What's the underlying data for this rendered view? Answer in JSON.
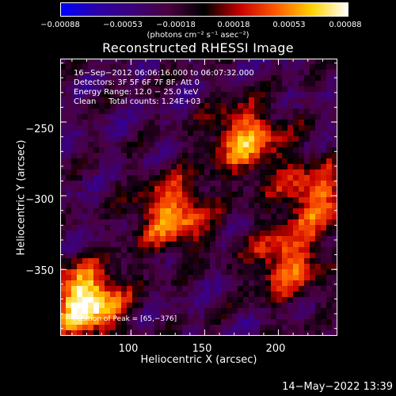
{
  "colorbar": {
    "ticks": [
      "−0.00088",
      "−0.00053",
      "−0.00018",
      "0.00018",
      "0.00053",
      "0.00088"
    ],
    "units": "(photons cm⁻² s⁻¹ asec⁻²)",
    "range": [
      -0.00088,
      0.00088
    ],
    "colors": [
      "#0000ff",
      "#2a00a8",
      "#3c007a",
      "#4a0040",
      "#000000",
      "#c80000",
      "#ff5a00",
      "#ffd200",
      "#ffffff"
    ]
  },
  "image_title": "Reconstructed RHESSI Image",
  "info": {
    "line1": "16−Sep−2012 06:06:16.000 to 06:07:32.000",
    "line2": "Detectors: 3F 5F 6F 7F 8F, Att 0",
    "line3": "Energy Range: 12.0 − 25.0 keV",
    "line4": "Clean     Total counts: 1.24E+03",
    "peak": "Position of Peak = [65,−376]"
  },
  "axes": {
    "xlabel": "Heliocentric X (arcsec)",
    "ylabel": "Heliocentric Y (arcsec)",
    "xticks": [
      "100",
      "150",
      "200"
    ],
    "yticks": [
      "−250",
      "−300",
      "−350"
    ]
  },
  "timestamp": "14−May−2022 13:39",
  "chart_data": {
    "type": "heatmap",
    "title": "Reconstructed RHESSI Image",
    "xlabel": "Heliocentric X (arcsec)",
    "ylabel": "Heliocentric Y (arcsec)",
    "xlim": [
      52,
      240
    ],
    "ylim": [
      -395,
      -207
    ],
    "x_ticks": [
      100,
      150,
      200
    ],
    "y_ticks": [
      -250,
      -300,
      -350
    ],
    "value_range": [
      -0.00088,
      0.00088
    ],
    "value_units": "photons cm^-2 s^-1 asec^-2",
    "peak_position": [
      65,
      -376
    ],
    "bright_regions": [
      {
        "x": 70,
        "y": -372,
        "level": 0.00088
      },
      {
        "x": 128,
        "y": -313,
        "level": 0.00053
      },
      {
        "x": 178,
        "y": -262,
        "level": 0.0005
      },
      {
        "x": 205,
        "y": -345,
        "level": 0.0004
      },
      {
        "x": 225,
        "y": -300,
        "level": 0.0004
      }
    ]
  }
}
